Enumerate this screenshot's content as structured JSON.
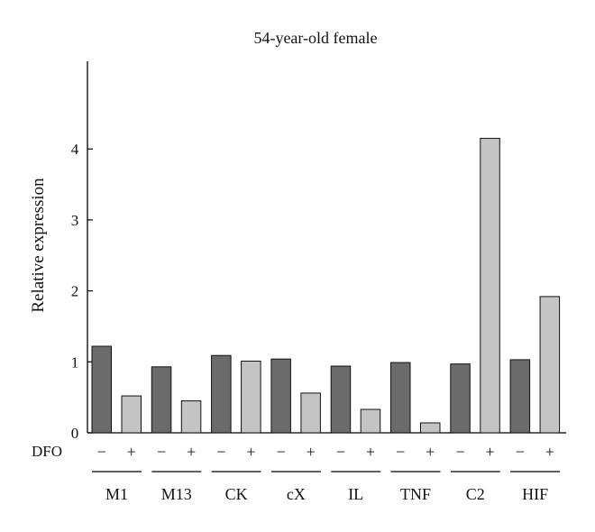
{
  "chart_data": {
    "type": "bar",
    "title": "54-year-old female",
    "xlabel": "",
    "ylabel": "Relative expression",
    "ylim": [
      0,
      5
    ],
    "yticks": [
      0,
      1,
      2,
      3,
      4
    ],
    "grid": false,
    "treatment_label": "DFO",
    "treatment_levels": [
      "−",
      "+"
    ],
    "categories": [
      "M1",
      "M13",
      "CK",
      "cX",
      "IL",
      "TNF",
      "C2",
      "HIF"
    ],
    "series": [
      {
        "treatment": "−",
        "color": "#6b6b6b",
        "values": [
          1.22,
          0.93,
          1.09,
          1.04,
          0.94,
          0.99,
          0.97,
          1.03
        ]
      },
      {
        "treatment": "+",
        "color": "#c4c4c4",
        "values": [
          0.52,
          0.45,
          1.01,
          0.56,
          0.33,
          0.14,
          4.15,
          1.92
        ]
      }
    ]
  }
}
